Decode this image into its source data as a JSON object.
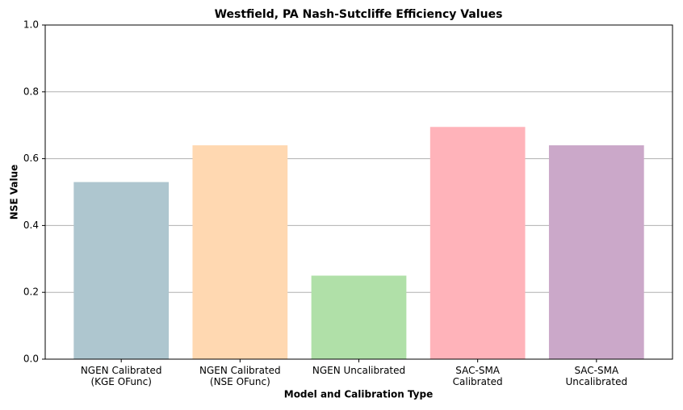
{
  "chart_data": {
    "type": "bar",
    "title": "Westfield, PA Nash-Sutcliffe Efficiency Values",
    "xlabel": "Model and Calibration Type",
    "ylabel": "NSE Value",
    "categories": [
      "NGEN Calibrated\n(KGE OFunc)",
      "NGEN Calibrated\n(NSE OFunc)",
      "NGEN Uncalibrated",
      "SAC-SMA\nCalibrated",
      "SAC-SMA\nUncalibrated"
    ],
    "values": [
      0.53,
      0.64,
      0.25,
      0.695,
      0.64
    ],
    "colors": [
      "#aec6cf",
      "#ffd8b1",
      "#b0e0a8",
      "#ffb3ba",
      "#cba8c9"
    ],
    "ylim": [
      0,
      1
    ],
    "yticks": [
      {
        "value": 0,
        "label": "0.0"
      },
      {
        "value": 0.2,
        "label": "0.2"
      },
      {
        "value": 0.4,
        "label": "0.4"
      },
      {
        "value": 0.6,
        "label": "0.6"
      },
      {
        "value": 0.8,
        "label": "0.8"
      },
      {
        "value": 1,
        "label": "1.0"
      }
    ],
    "grid": true
  }
}
